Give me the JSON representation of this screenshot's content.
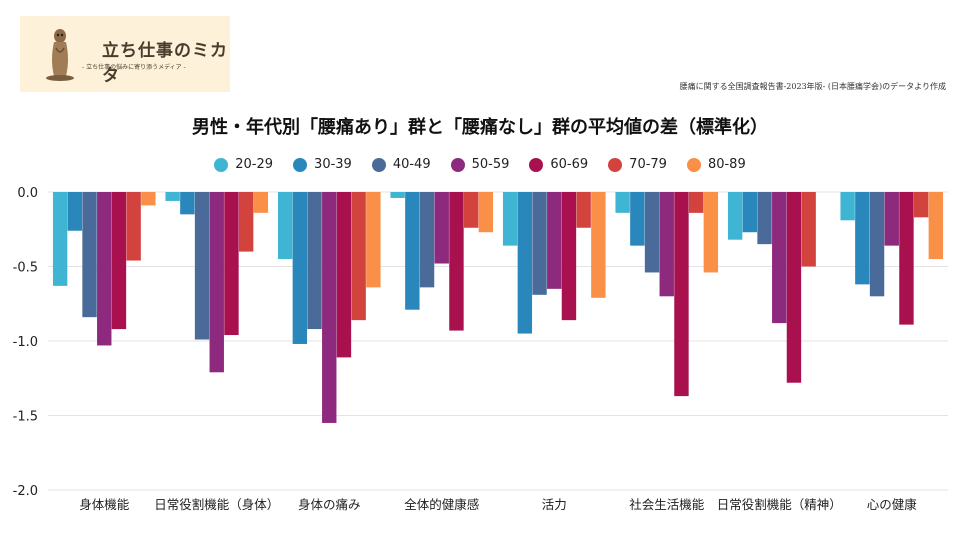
{
  "logo": {
    "title": "立ち仕事のミカタ",
    "subtitle": "- 立ち仕事の悩みに寄り添うメディア -",
    "icon": "meerkat-icon"
  },
  "source_note": "腰痛に関する全国調査報告書-2023年版- (日本腰痛学会)のデータより作成",
  "chart_data": {
    "type": "bar",
    "title": "男性・年代別「腰痛あり」群と「腰痛なし」群の平均値の差（標準化）",
    "xlabel": "",
    "ylabel": "",
    "ylim": [
      -2.0,
      0.0
    ],
    "yticks": [
      0.0,
      -0.5,
      -1.0,
      -1.5,
      -2.0
    ],
    "ytick_labels": [
      "0.0",
      "-0.5",
      "-1.0",
      "-1.5",
      "-2.0"
    ],
    "grid": true,
    "legend_position": "top-center",
    "categories": [
      "身体機能",
      "日常役割機能（身体）",
      "身体の痛み",
      "全体的健康感",
      "活力",
      "社会生活機能",
      "日常役割機能（精神）",
      "心の健康"
    ],
    "series": [
      {
        "name": "20-29",
        "color": "#3fb5d3",
        "values": [
          -0.63,
          -0.06,
          -0.45,
          -0.04,
          -0.36,
          -0.14,
          -0.32,
          -0.19
        ]
      },
      {
        "name": "30-39",
        "color": "#2a87bb",
        "values": [
          -0.26,
          -0.15,
          -1.02,
          -0.79,
          -0.95,
          -0.36,
          -0.27,
          -0.62
        ]
      },
      {
        "name": "40-49",
        "color": "#4a6b9a",
        "values": [
          -0.84,
          -0.99,
          -0.92,
          -0.64,
          -0.69,
          -0.54,
          -0.35,
          -0.7
        ]
      },
      {
        "name": "50-59",
        "color": "#8e2a7d",
        "values": [
          -1.03,
          -1.21,
          -1.55,
          -0.48,
          -0.65,
          -0.7,
          -0.88,
          -0.36
        ]
      },
      {
        "name": "60-69",
        "color": "#a8104e",
        "values": [
          -0.92,
          -0.96,
          -1.11,
          -0.93,
          -0.86,
          -1.37,
          -1.28,
          -0.89
        ]
      },
      {
        "name": "70-79",
        "color": "#d2433e",
        "values": [
          -0.46,
          -0.4,
          -0.86,
          -0.24,
          -0.24,
          -0.14,
          -0.5,
          -0.17
        ]
      },
      {
        "name": "80-89",
        "color": "#fa8f48",
        "values": [
          -0.09,
          -0.14,
          -0.64,
          -0.27,
          -0.71,
          -0.54,
          0.0,
          -0.45
        ]
      }
    ]
  }
}
